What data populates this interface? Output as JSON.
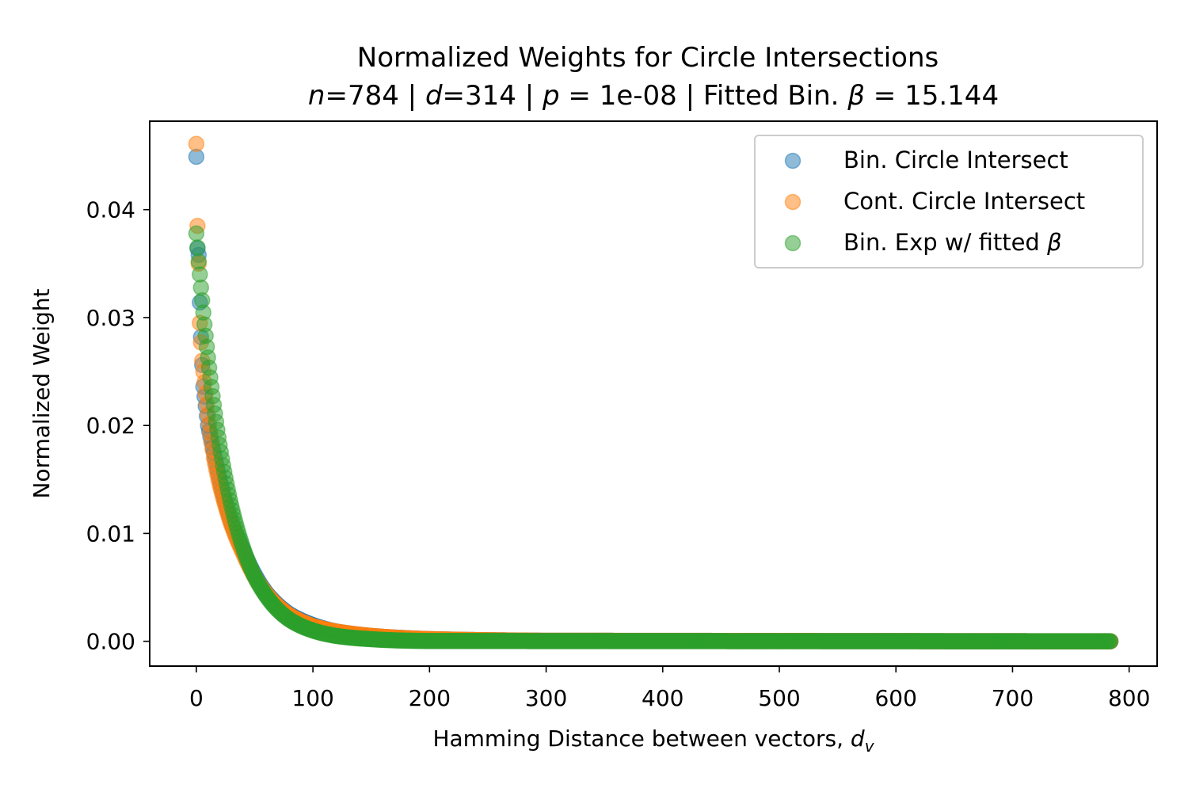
{
  "chart_data": {
    "type": "scatter",
    "title": "Normalized Weights for Circle Intersections",
    "subtitle": {
      "parts": [
        {
          "text": "n",
          "italic": true
        },
        {
          "text": "=784 | ",
          "italic": false
        },
        {
          "text": "d",
          "italic": true
        },
        {
          "text": "=314 | ",
          "italic": false
        },
        {
          "text": "p",
          "italic": true
        },
        {
          "text": " = 1e-08 | Fitted Bin. ",
          "italic": false
        },
        {
          "text": "β",
          "italic": true
        },
        {
          "text": " = 15.144",
          "italic": false
        }
      ]
    },
    "xlabel": {
      "text": "Hamming Distance between vectors, ",
      "var": "d",
      "sub": "v"
    },
    "ylabel": "Normalized Weight",
    "xlim": [
      -40,
      824
    ],
    "ylim": [
      -0.0023,
      0.0482
    ],
    "x_ticks": [
      0,
      100,
      200,
      300,
      400,
      500,
      600,
      700,
      800
    ],
    "x_tick_labels": [
      "0",
      "100",
      "200",
      "300",
      "400",
      "500",
      "600",
      "700",
      "800"
    ],
    "y_ticks": [
      0.0,
      0.01,
      0.02,
      0.03,
      0.04
    ],
    "y_tick_labels": [
      "0.00",
      "0.01",
      "0.02",
      "0.03",
      "0.04"
    ],
    "grid": false,
    "legend_position": "top-right",
    "x_range": [
      0,
      784
    ],
    "series": [
      {
        "name": "Bin. Circle Intersect",
        "color": "#1f77b4",
        "key_points": [
          [
            0,
            0.0449
          ],
          [
            1,
            0.0364
          ],
          [
            2,
            0.0358
          ],
          [
            3,
            0.0314
          ],
          [
            4,
            0.0282
          ],
          [
            5,
            0.0256
          ],
          [
            6,
            0.0236
          ],
          [
            8,
            0.0218
          ],
          [
            10,
            0.02
          ],
          [
            15,
            0.0175
          ],
          [
            20,
            0.015
          ],
          [
            30,
            0.011
          ],
          [
            40,
            0.0085
          ],
          [
            50,
            0.0062
          ],
          [
            60,
            0.0045
          ],
          [
            80,
            0.0025
          ],
          [
            100,
            0.0015
          ],
          [
            120,
            0.0009
          ],
          [
            150,
            0.0005
          ],
          [
            200,
            0.0002
          ],
          [
            300,
            5e-05
          ],
          [
            784,
            0.0
          ]
        ]
      },
      {
        "name": "Cont. Circle Intersect",
        "color": "#ff7f0e",
        "key_points": [
          [
            0,
            0.0461
          ],
          [
            1,
            0.0385
          ],
          [
            2,
            0.035
          ],
          [
            3,
            0.0295
          ],
          [
            5,
            0.026
          ],
          [
            7,
            0.024
          ],
          [
            10,
            0.021
          ],
          [
            15,
            0.017
          ],
          [
            20,
            0.0145
          ],
          [
            30,
            0.0108
          ],
          [
            40,
            0.0082
          ],
          [
            50,
            0.006
          ],
          [
            60,
            0.0044
          ],
          [
            80,
            0.0024
          ],
          [
            100,
            0.0014
          ],
          [
            120,
            0.0009
          ],
          [
            150,
            0.0005
          ],
          [
            200,
            0.0002
          ],
          [
            300,
            5e-05
          ],
          [
            784,
            0.0
          ]
        ]
      },
      {
        "name": "Bin. Exp w/ fitted β",
        "color": "#2ca02c",
        "key_points": [
          [
            0,
            0.0378
          ],
          [
            1,
            0.0365
          ],
          [
            2,
            0.0352
          ],
          [
            3,
            0.034
          ],
          [
            5,
            0.0316
          ],
          [
            10,
            0.0263
          ],
          [
            15,
            0.0219
          ],
          [
            20,
            0.0182
          ],
          [
            30,
            0.0126
          ],
          [
            40,
            0.0087
          ],
          [
            50,
            0.006
          ],
          [
            60,
            0.0042
          ],
          [
            80,
            0.002
          ],
          [
            100,
            0.001
          ],
          [
            120,
            0.0005
          ],
          [
            150,
            0.0002
          ],
          [
            200,
            3e-05
          ],
          [
            784,
            0.0
          ]
        ]
      }
    ]
  },
  "legend": {
    "items": [
      {
        "text": "Bin. Circle Intersect",
        "color": "#1f77b4"
      },
      {
        "text": "Cont. Circle Intersect",
        "color": "#ff7f0e"
      },
      {
        "text": "Bin. Exp w/ fitted ",
        "var": "β",
        "color": "#2ca02c"
      }
    ]
  }
}
